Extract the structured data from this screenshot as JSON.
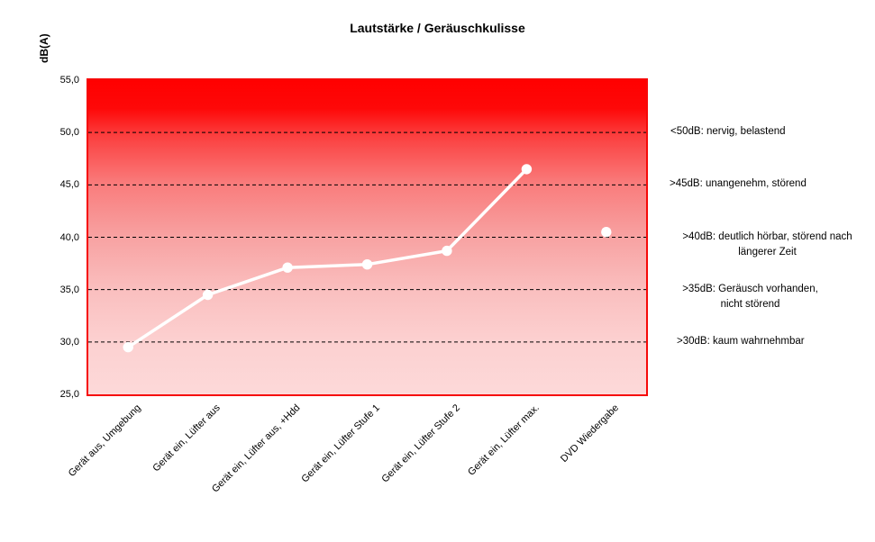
{
  "chart_data": {
    "type": "line",
    "title": "Lautstärke / Geräuschkulisse",
    "ylabel": "dB(A)",
    "xlabel": "",
    "categories": [
      "Gerät aus, Umgebung",
      "Gerät ein, Lüfter aus",
      "Gerät ein, Lüfter aus, +Hdd",
      "Gerät ein, Lüfter Stufe 1",
      "Gerät ein, Lüfter Stufe 2",
      "Gerät ein, Lüfter max.",
      "DVD Wiedergabe"
    ],
    "series": [
      {
        "name": "Lautstärke dB(A)",
        "values": [
          29.5,
          34.5,
          37.1,
          37.4,
          38.7,
          46.5,
          40.5
        ]
      }
    ],
    "line_connects_indices": [
      0,
      1,
      2,
      3,
      4,
      5
    ],
    "isolated_marker_indices": [
      6
    ],
    "ylim": [
      25,
      55
    ],
    "ytick_values": [
      55,
      50,
      45,
      40,
      35,
      30,
      25
    ],
    "ytick_labels": [
      "55,0",
      "50,0",
      "45,0",
      "40,0",
      "35,0",
      "30,0",
      "25,0"
    ],
    "gridline_values": [
      50,
      45,
      40,
      35,
      30
    ],
    "grid": "horizontal dashed",
    "legend_position": "none",
    "colors": {
      "line": "#ffffff",
      "marker": "#ffffff",
      "plot_border": "#f60909",
      "gradient_top": "#ff0000",
      "gradient_bottom": "#fdd9d9",
      "gridline": "#000000",
      "text": "#000000"
    },
    "annotations": [
      {
        "line1": "<50dB: nervig, belastend",
        "line2": "",
        "at_value": 50
      },
      {
        "line1": ">45dB: unangenehm, störend",
        "line2": "",
        "at_value": 45
      },
      {
        "line1": ">40dB: deutlich hörbar, störend nach",
        "line2": "längerer Zeit",
        "at_value": 40
      },
      {
        "line1": ">35dB: Geräusch vorhanden,",
        "line2": "nicht störend",
        "at_value": 35
      },
      {
        "line1": ">30dB: kaum wahrnehmbar",
        "line2": "",
        "at_value": 30
      }
    ]
  }
}
